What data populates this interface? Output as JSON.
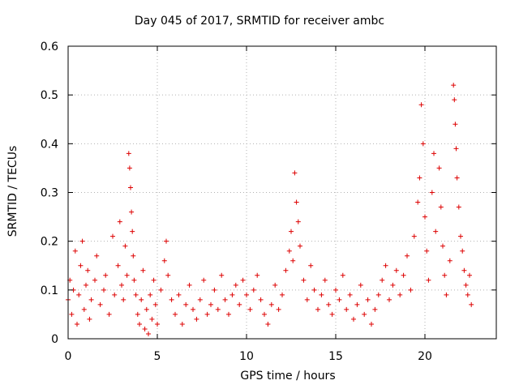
{
  "chart_data": {
    "type": "scatter",
    "title": "Day 045 of 2017, SRMTID for receiver ambc",
    "xlabel": "GPS time / hours",
    "ylabel": "SRMTID / TECUs",
    "xlim": [
      0,
      24
    ],
    "ylim": [
      0,
      0.6
    ],
    "xticks": [
      0,
      5,
      10,
      15,
      20
    ],
    "yticks": [
      0,
      0.1,
      0.2,
      0.3,
      0.4,
      0.5,
      0.6
    ],
    "grid": true,
    "marker": "+",
    "color": "#dd0000",
    "series": [
      {
        "name": "SRMTID",
        "points": [
          [
            0.0,
            0.08
          ],
          [
            0.1,
            0.12
          ],
          [
            0.2,
            0.05
          ],
          [
            0.3,
            0.1
          ],
          [
            0.4,
            0.18
          ],
          [
            0.5,
            0.03
          ],
          [
            0.6,
            0.09
          ],
          [
            0.7,
            0.15
          ],
          [
            0.8,
            0.2
          ],
          [
            0.9,
            0.06
          ],
          [
            1.0,
            0.11
          ],
          [
            1.1,
            0.14
          ],
          [
            1.2,
            0.04
          ],
          [
            1.3,
            0.08
          ],
          [
            1.5,
            0.12
          ],
          [
            1.6,
            0.17
          ],
          [
            1.8,
            0.07
          ],
          [
            2.0,
            0.1
          ],
          [
            2.1,
            0.13
          ],
          [
            2.3,
            0.05
          ],
          [
            2.5,
            0.21
          ],
          [
            2.6,
            0.09
          ],
          [
            2.8,
            0.15
          ],
          [
            2.9,
            0.24
          ],
          [
            3.0,
            0.11
          ],
          [
            3.1,
            0.08
          ],
          [
            3.2,
            0.19
          ],
          [
            3.3,
            0.13
          ],
          [
            3.4,
            0.38
          ],
          [
            3.45,
            0.35
          ],
          [
            3.5,
            0.31
          ],
          [
            3.55,
            0.26
          ],
          [
            3.6,
            0.22
          ],
          [
            3.65,
            0.17
          ],
          [
            3.7,
            0.12
          ],
          [
            3.8,
            0.09
          ],
          [
            3.9,
            0.05
          ],
          [
            4.0,
            0.03
          ],
          [
            4.1,
            0.08
          ],
          [
            4.2,
            0.14
          ],
          [
            4.3,
            0.02
          ],
          [
            4.4,
            0.06
          ],
          [
            4.5,
            0.01
          ],
          [
            4.6,
            0.09
          ],
          [
            4.7,
            0.04
          ],
          [
            4.8,
            0.12
          ],
          [
            4.9,
            0.07
          ],
          [
            5.0,
            0.03
          ],
          [
            5.2,
            0.1
          ],
          [
            5.4,
            0.16
          ],
          [
            5.5,
            0.2
          ],
          [
            5.6,
            0.13
          ],
          [
            5.8,
            0.08
          ],
          [
            6.0,
            0.05
          ],
          [
            6.2,
            0.09
          ],
          [
            6.4,
            0.03
          ],
          [
            6.6,
            0.07
          ],
          [
            6.8,
            0.11
          ],
          [
            7.0,
            0.06
          ],
          [
            7.2,
            0.04
          ],
          [
            7.4,
            0.08
          ],
          [
            7.6,
            0.12
          ],
          [
            7.8,
            0.05
          ],
          [
            8.0,
            0.07
          ],
          [
            8.2,
            0.1
          ],
          [
            8.4,
            0.06
          ],
          [
            8.6,
            0.13
          ],
          [
            8.8,
            0.08
          ],
          [
            9.0,
            0.05
          ],
          [
            9.2,
            0.09
          ],
          [
            9.4,
            0.11
          ],
          [
            9.6,
            0.07
          ],
          [
            9.8,
            0.12
          ],
          [
            10.0,
            0.09
          ],
          [
            10.2,
            0.06
          ],
          [
            10.4,
            0.1
          ],
          [
            10.6,
            0.13
          ],
          [
            10.8,
            0.08
          ],
          [
            11.0,
            0.05
          ],
          [
            11.2,
            0.03
          ],
          [
            11.4,
            0.07
          ],
          [
            11.6,
            0.11
          ],
          [
            11.8,
            0.06
          ],
          [
            12.0,
            0.09
          ],
          [
            12.2,
            0.14
          ],
          [
            12.4,
            0.18
          ],
          [
            12.5,
            0.22
          ],
          [
            12.6,
            0.16
          ],
          [
            12.7,
            0.34
          ],
          [
            12.8,
            0.28
          ],
          [
            12.9,
            0.24
          ],
          [
            13.0,
            0.19
          ],
          [
            13.2,
            0.12
          ],
          [
            13.4,
            0.08
          ],
          [
            13.6,
            0.15
          ],
          [
            13.8,
            0.1
          ],
          [
            14.0,
            0.06
          ],
          [
            14.2,
            0.09
          ],
          [
            14.4,
            0.12
          ],
          [
            14.6,
            0.07
          ],
          [
            14.8,
            0.05
          ],
          [
            15.0,
            0.1
          ],
          [
            15.2,
            0.08
          ],
          [
            15.4,
            0.13
          ],
          [
            15.6,
            0.06
          ],
          [
            15.8,
            0.09
          ],
          [
            16.0,
            0.04
          ],
          [
            16.2,
            0.07
          ],
          [
            16.4,
            0.11
          ],
          [
            16.6,
            0.05
          ],
          [
            16.8,
            0.08
          ],
          [
            17.0,
            0.03
          ],
          [
            17.2,
            0.06
          ],
          [
            17.4,
            0.09
          ],
          [
            17.6,
            0.12
          ],
          [
            17.8,
            0.15
          ],
          [
            18.0,
            0.08
          ],
          [
            18.2,
            0.11
          ],
          [
            18.4,
            0.14
          ],
          [
            18.6,
            0.09
          ],
          [
            18.8,
            0.13
          ],
          [
            19.0,
            0.17
          ],
          [
            19.2,
            0.1
          ],
          [
            19.4,
            0.21
          ],
          [
            19.6,
            0.28
          ],
          [
            19.7,
            0.33
          ],
          [
            19.8,
            0.48
          ],
          [
            19.9,
            0.4
          ],
          [
            20.0,
            0.25
          ],
          [
            20.1,
            0.18
          ],
          [
            20.2,
            0.12
          ],
          [
            20.4,
            0.3
          ],
          [
            20.5,
            0.38
          ],
          [
            20.6,
            0.22
          ],
          [
            20.8,
            0.35
          ],
          [
            20.9,
            0.27
          ],
          [
            21.0,
            0.19
          ],
          [
            21.1,
            0.13
          ],
          [
            21.2,
            0.09
          ],
          [
            21.4,
            0.16
          ],
          [
            21.6,
            0.52
          ],
          [
            21.65,
            0.49
          ],
          [
            21.7,
            0.44
          ],
          [
            21.75,
            0.39
          ],
          [
            21.8,
            0.33
          ],
          [
            21.9,
            0.27
          ],
          [
            22.0,
            0.21
          ],
          [
            22.1,
            0.18
          ],
          [
            22.2,
            0.14
          ],
          [
            22.3,
            0.11
          ],
          [
            22.4,
            0.09
          ],
          [
            22.5,
            0.13
          ],
          [
            22.6,
            0.07
          ]
        ]
      }
    ]
  }
}
